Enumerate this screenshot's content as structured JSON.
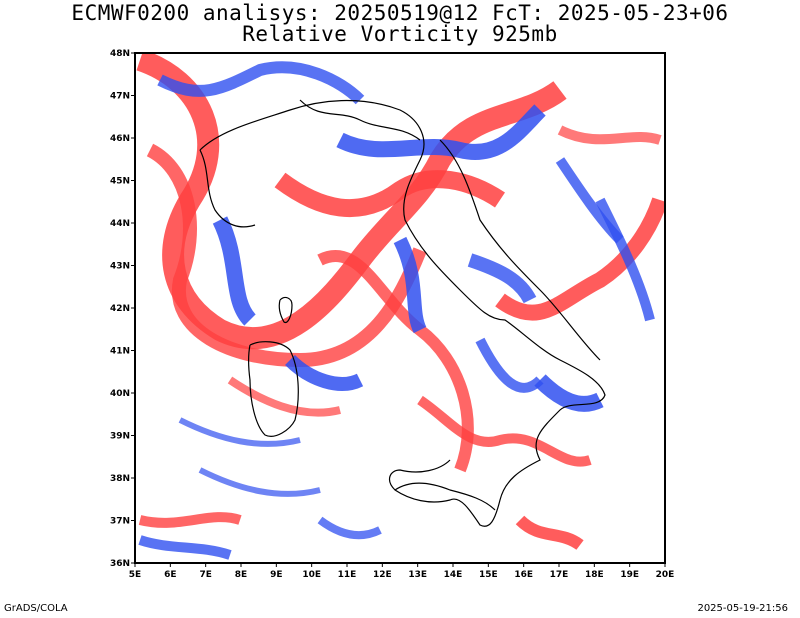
{
  "title_line1": "ECMWF0200 analisys: 20250519@12 FcT: 2025-05-23+06",
  "title_line2": "Relative Vorticity 925mb",
  "lat_labels": [
    "36N",
    "37N",
    "38N",
    "39N",
    "40N",
    "41N",
    "42N",
    "43N",
    "44N",
    "45N",
    "46N",
    "47N",
    "48N"
  ],
  "lon_labels": [
    "5E",
    "6E",
    "7E",
    "8E",
    "9E",
    "10E",
    "11E",
    "12E",
    "13E",
    "14E",
    "15E",
    "16E",
    "17E",
    "18E",
    "19E",
    "20E"
  ],
  "footer_left": "GrADS/COLA",
  "footer_right": "2025-05-19-21:56",
  "colors": {
    "positive": "#ff4040",
    "negative": "#3050f0",
    "coast": "#000000",
    "frame": "#000000"
  },
  "map_extent": {
    "lon_min": 5,
    "lon_max": 20,
    "lat_min": 36,
    "lat_max": 48
  }
}
